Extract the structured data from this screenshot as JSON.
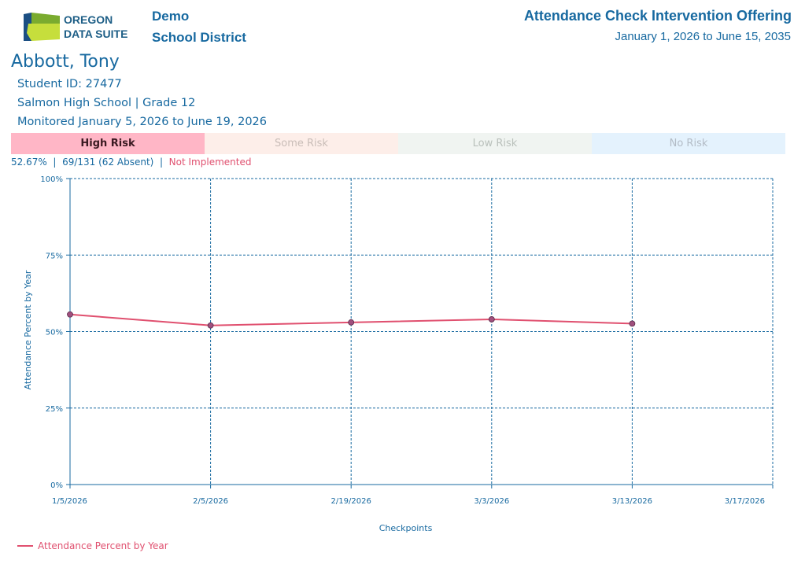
{
  "header": {
    "logo_line1": "OREGON",
    "logo_line2": "DATA SUITE",
    "district_line1": "Demo",
    "district_line2": "School District",
    "report_title": "Attendance Check Intervention Offering",
    "report_range": "January 1, 2026 to June 15, 2035"
  },
  "student": {
    "name": "Abbott, Tony",
    "id_line": "Student ID: 27477",
    "school_line": "Salmon High School | Grade 12",
    "monitored_line": "Monitored January 5, 2026 to June 19, 2026"
  },
  "risk_levels": {
    "high": "High Risk",
    "some": "Some Risk",
    "low": "Low Risk",
    "none": "No Risk"
  },
  "stats": {
    "percent": "52.67%",
    "sep1": "|",
    "counts": "69/131 (62 Absent)",
    "sep2": "|",
    "status": "Not Implemented"
  },
  "colors": {
    "accent": "#1769a0",
    "series": "#e0506f",
    "marker_fill": "#a0507e",
    "grid": "#1769a0"
  },
  "chart_data": {
    "type": "line",
    "categories": [
      "1/5/2026",
      "2/5/2026",
      "2/19/2026",
      "3/3/2026",
      "3/13/2026",
      "3/17/2026"
    ],
    "series": [
      {
        "name": "Attendance Percent by Year",
        "values": [
          55.6,
          52.0,
          53.0,
          54.0,
          52.6,
          null
        ]
      }
    ],
    "yticks": [
      "0%",
      "25%",
      "50%",
      "75%",
      "100%"
    ],
    "ylim": [
      0,
      100
    ],
    "xlabel": "Checkpoints",
    "ylabel": "Attendance Percent by Year",
    "grid": true,
    "legend": "bottom-left"
  }
}
